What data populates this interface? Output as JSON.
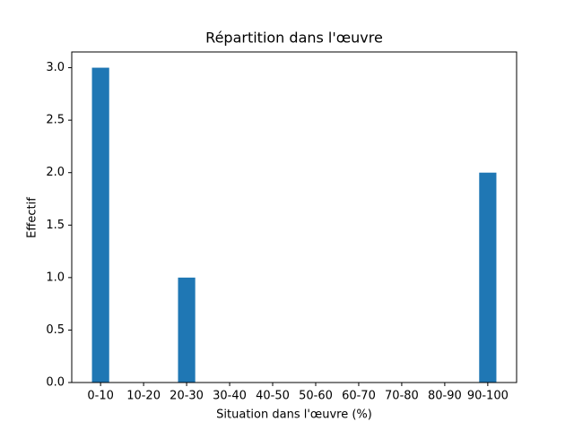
{
  "chart_data": {
    "type": "bar",
    "title": "Répartition dans l'œuvre",
    "x_label": "Situation dans l'œuvre (%)",
    "y_label": "Effectif",
    "categories": [
      "0-10",
      "10-20",
      "20-30",
      "30-40",
      "40-50",
      "50-60",
      "60-70",
      "70-80",
      "80-90",
      "90-100"
    ],
    "values": [
      3,
      0,
      1,
      0,
      0,
      0,
      0,
      0,
      0,
      2
    ],
    "color": "#1f77b4",
    "ylim": [
      0,
      3.15
    ],
    "yticks": [
      {
        "value": 0,
        "label": "0.0"
      },
      {
        "value": 0.5,
        "label": "0.5"
      },
      {
        "value": 1,
        "label": "1.0"
      },
      {
        "value": 1.5,
        "label": "1.5"
      },
      {
        "value": 2,
        "label": "2.0"
      },
      {
        "value": 2.5,
        "label": "2.5"
      },
      {
        "value": 3,
        "label": "3.0"
      }
    ]
  }
}
